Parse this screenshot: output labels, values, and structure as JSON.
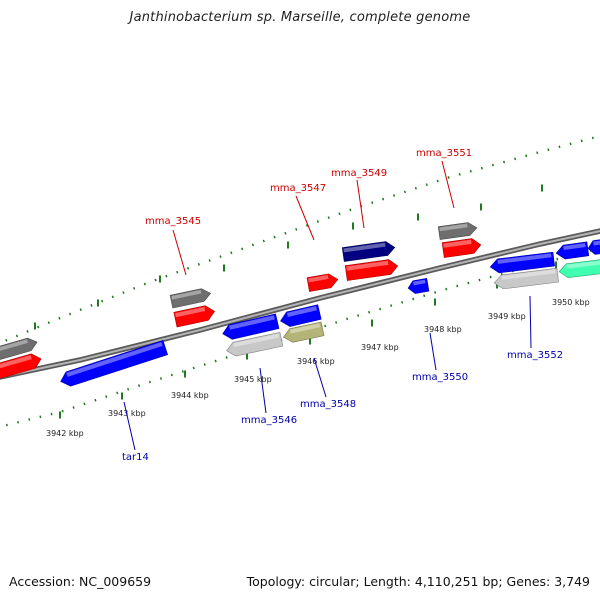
{
  "title": "Janthinobacterium sp. Marseille, complete genome",
  "footer": {
    "accession": "Accession: NC_009659",
    "summary": "Topology: circular; Length: 4,110,251 bp; Genes: 3,749"
  },
  "colors": {
    "backbone": "#8c8c8c",
    "tick": "#1f7a1f",
    "label_forward": "#cc0000",
    "label_reverse": "#0000aa",
    "red": "#ff0000",
    "blue": "#0000ff",
    "gray": "#6e6e6e",
    "lightgray": "#c8c8c8",
    "navy": "#000080",
    "olive": "#b4b478",
    "aqua": "#40ffb0"
  },
  "kbp_labels": [
    {
      "text": "3942 kbp"
    },
    {
      "text": "3943 kbp"
    },
    {
      "text": "3944 kbp"
    },
    {
      "text": "3945 kbp"
    },
    {
      "text": "3946 kbp"
    },
    {
      "text": "3947 kbp"
    },
    {
      "text": "3948 kbp"
    },
    {
      "text": "3949 kbp"
    },
    {
      "text": "3950 kbp"
    }
  ],
  "gene_labels": [
    {
      "name": "mma_3545",
      "strand": "forward"
    },
    {
      "name": "mma_3547",
      "strand": "forward"
    },
    {
      "name": "mma_3549",
      "strand": "forward"
    },
    {
      "name": "mma_3551",
      "strand": "forward"
    },
    {
      "name": "tar14",
      "strand": "reverse"
    },
    {
      "name": "mma_3546",
      "strand": "reverse"
    },
    {
      "name": "mma_3548",
      "strand": "reverse"
    },
    {
      "name": "mma_3550",
      "strand": "reverse"
    },
    {
      "name": "mma_3552",
      "strand": "reverse"
    }
  ],
  "features": [
    {
      "color": "gray",
      "dir": "right"
    },
    {
      "color": "red",
      "dir": "right"
    },
    {
      "color": "gray",
      "dir": "right"
    },
    {
      "color": "red",
      "dir": "right"
    },
    {
      "color": "red",
      "dir": "right"
    },
    {
      "color": "navy",
      "dir": "right"
    },
    {
      "color": "red",
      "dir": "right"
    },
    {
      "color": "gray",
      "dir": "right"
    },
    {
      "color": "red",
      "dir": "right"
    },
    {
      "color": "blue",
      "dir": "left"
    },
    {
      "color": "blue",
      "dir": "left"
    },
    {
      "color": "lightgray",
      "dir": "left"
    },
    {
      "color": "blue",
      "dir": "left"
    },
    {
      "color": "olive",
      "dir": "left"
    },
    {
      "color": "blue",
      "dir": "left"
    },
    {
      "color": "blue",
      "dir": "left"
    },
    {
      "color": "lightgray",
      "dir": "left"
    },
    {
      "color": "blue",
      "dir": "left"
    },
    {
      "color": "aqua",
      "dir": "left"
    },
    {
      "color": "blue",
      "dir": "left"
    }
  ]
}
